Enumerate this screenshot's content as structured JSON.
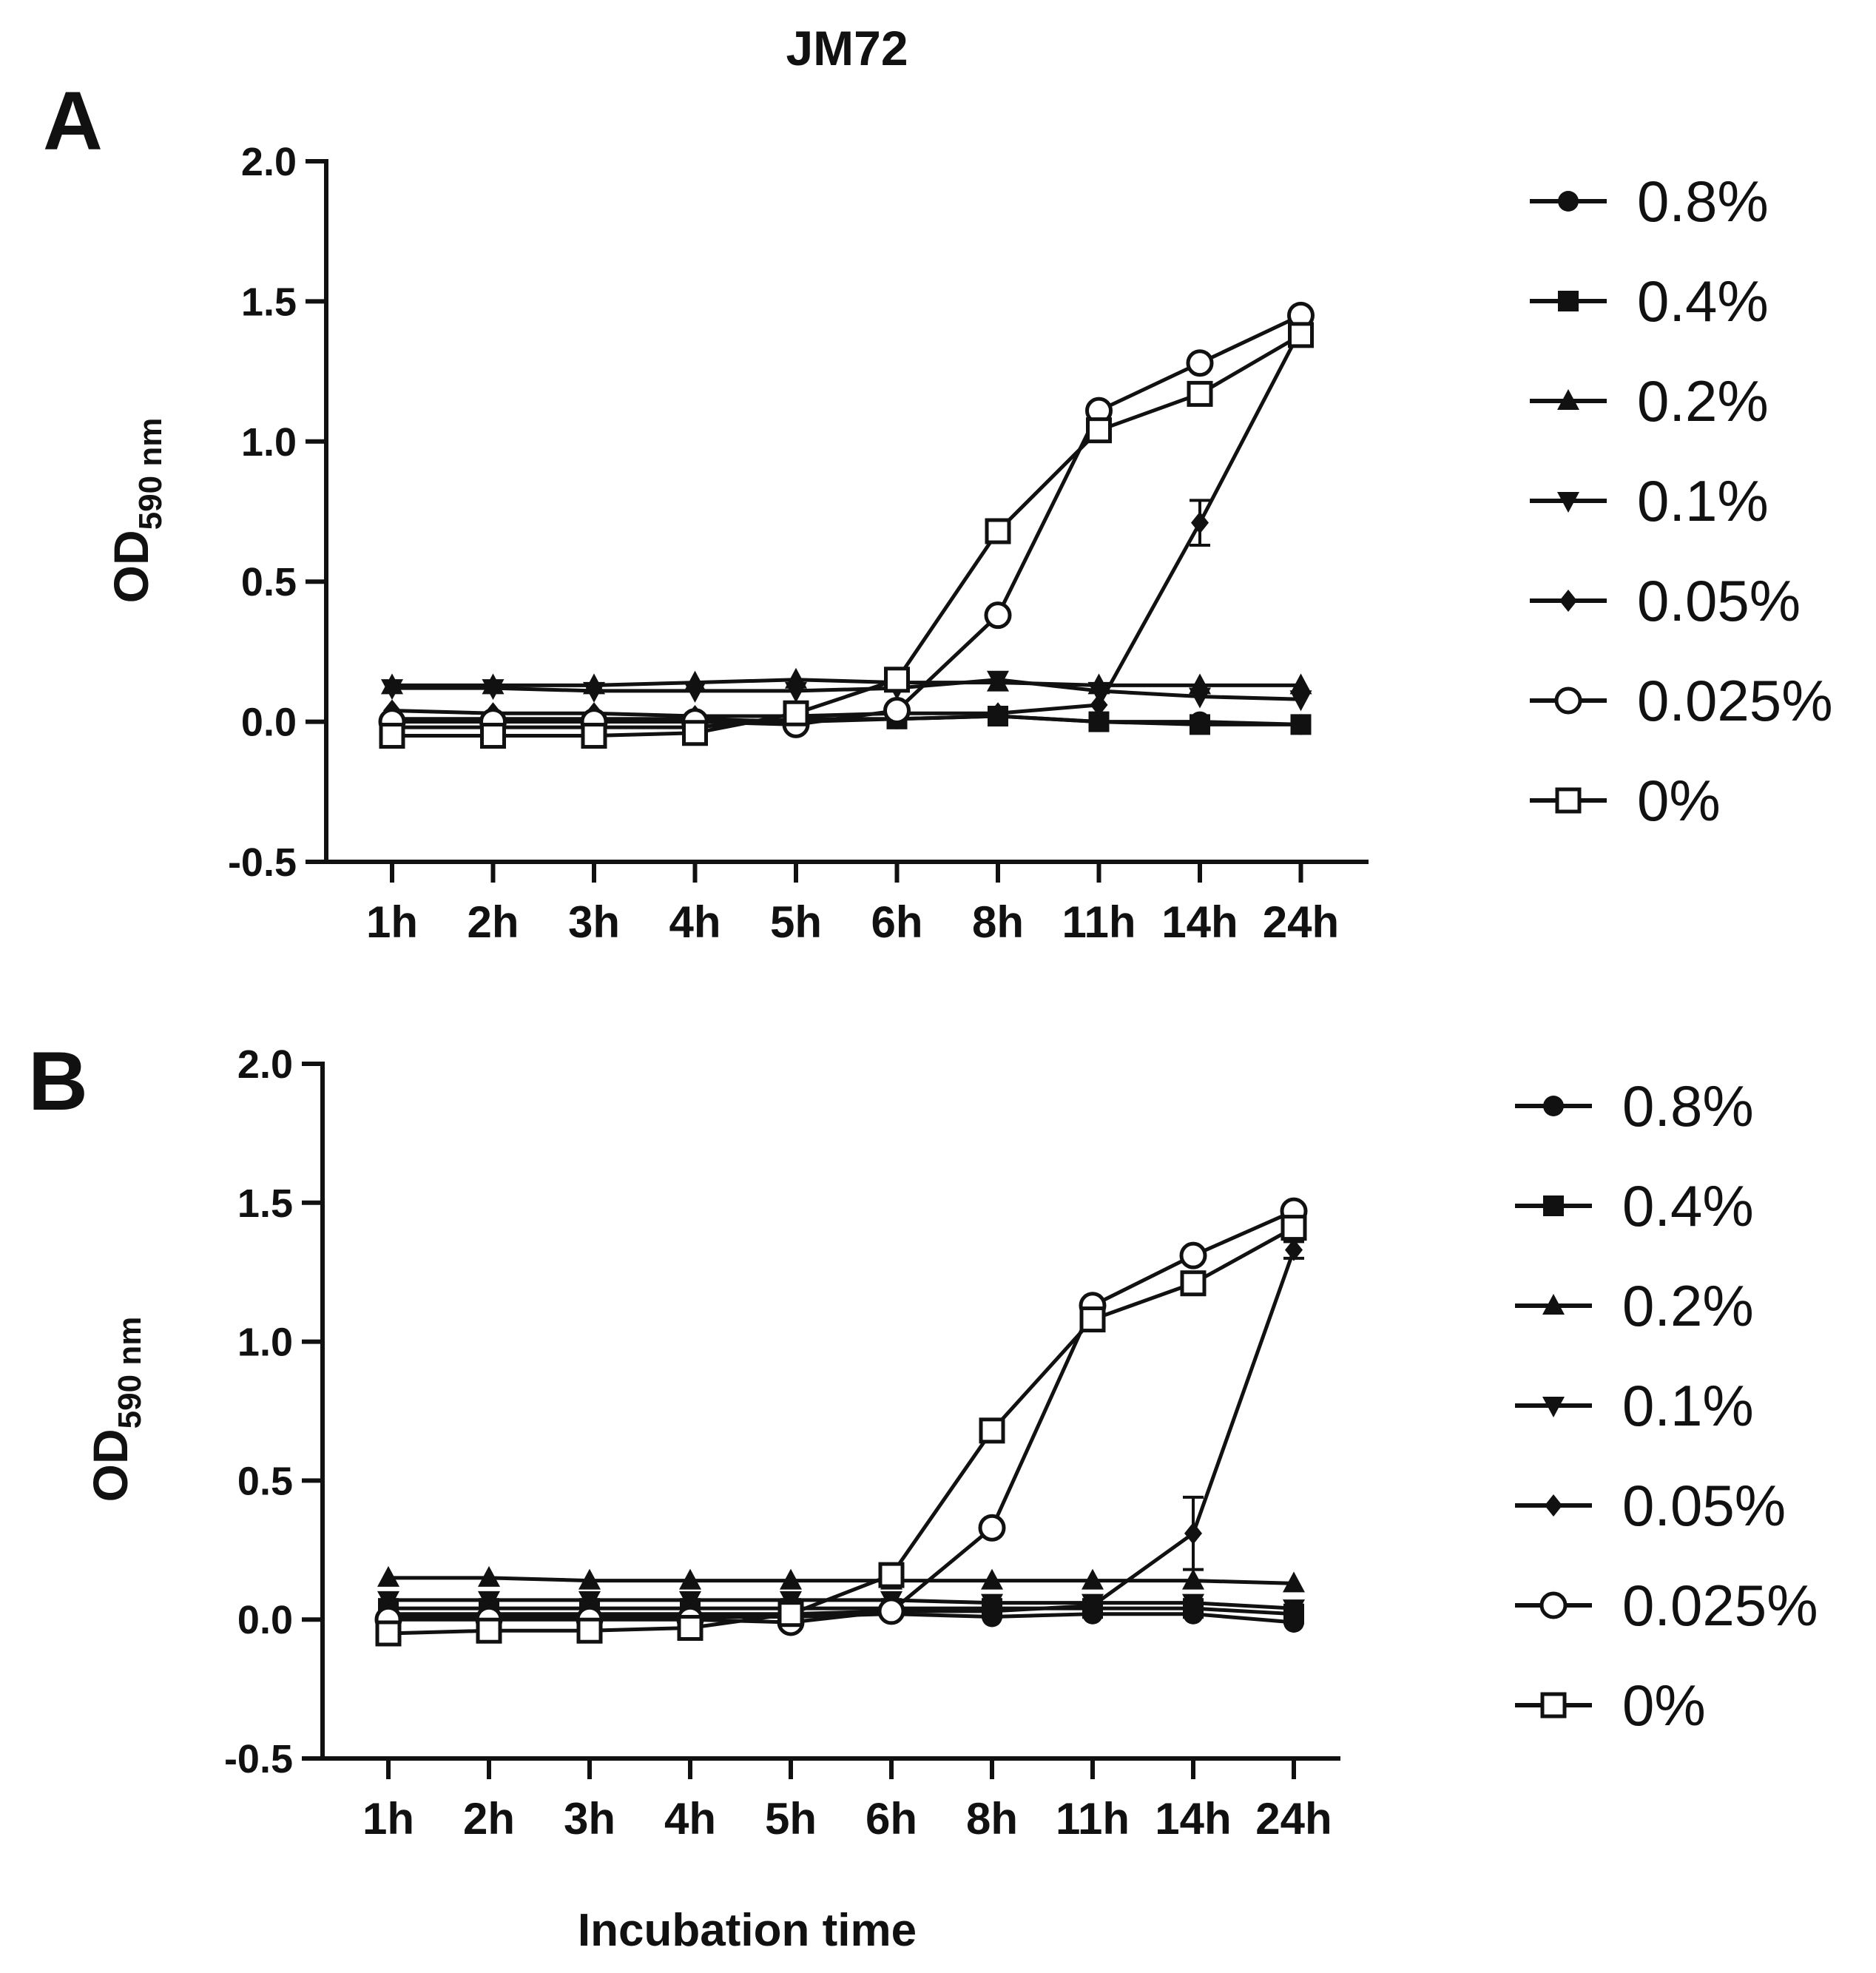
{
  "figure": {
    "title": "JM72",
    "xlabel": "Incubation time"
  },
  "chart_data": [
    {
      "panel": "A",
      "type": "line",
      "ylabel_main": "OD",
      "ylabel_sub": "590 nm",
      "xlabel": "Incubation time",
      "categories": [
        "1h",
        "2h",
        "3h",
        "4h",
        "5h",
        "6h",
        "8h",
        "11h",
        "14h",
        "24h"
      ],
      "ylim": [
        -0.5,
        2.0
      ],
      "yticks": [
        "2.0",
        "1.5",
        "1.0",
        "0.5",
        "0.0",
        "-0.5"
      ],
      "ytick_values": [
        2.0,
        1.5,
        1.0,
        0.5,
        0.0,
        -0.5
      ],
      "legend_position": "right",
      "series": [
        {
          "name": "0.8%",
          "marker": "circle-filled",
          "values": [
            0.01,
            0.01,
            0.01,
            0.01,
            0.0,
            0.01,
            0.02,
            0.0,
            0.0,
            -0.01
          ]
        },
        {
          "name": "0.4%",
          "marker": "square-filled",
          "values": [
            -0.02,
            -0.02,
            -0.02,
            -0.02,
            0.01,
            0.01,
            0.02,
            0.0,
            -0.01,
            -0.01
          ]
        },
        {
          "name": "0.2%",
          "marker": "triangle-up",
          "values": [
            0.13,
            0.13,
            0.13,
            0.14,
            0.15,
            0.14,
            0.14,
            0.13,
            0.13,
            0.13
          ]
        },
        {
          "name": "0.1%",
          "marker": "triangle-down",
          "values": [
            0.12,
            0.12,
            0.11,
            0.11,
            0.11,
            0.12,
            0.15,
            0.11,
            0.09,
            0.08
          ]
        },
        {
          "name": "0.05%",
          "marker": "diamond",
          "values": [
            0.04,
            0.03,
            0.03,
            0.02,
            0.02,
            0.03,
            0.03,
            0.06,
            0.71,
            1.4
          ]
        },
        {
          "name": "0.025%",
          "marker": "circle-open",
          "values": [
            0.0,
            0.0,
            0.0,
            0.0,
            -0.01,
            0.04,
            0.38,
            1.11,
            1.28,
            1.45
          ]
        },
        {
          "name": "0%",
          "marker": "square-open",
          "values": [
            -0.05,
            -0.05,
            -0.05,
            -0.04,
            0.03,
            0.15,
            0.68,
            1.04,
            1.17,
            1.38
          ]
        }
      ],
      "error_bars": [
        {
          "series": "0.05%",
          "category": "14h",
          "low": 0.63,
          "high": 0.79
        }
      ]
    },
    {
      "panel": "B",
      "type": "line",
      "ylabel_main": "OD",
      "ylabel_sub": "590 nm",
      "xlabel": "Incubation time",
      "categories": [
        "1h",
        "2h",
        "3h",
        "4h",
        "5h",
        "6h",
        "8h",
        "11h",
        "14h",
        "24h"
      ],
      "ylim": [
        -0.5,
        2.0
      ],
      "yticks": [
        "2.0",
        "1.5",
        "1.0",
        "0.5",
        "0.0",
        "-0.5"
      ],
      "ytick_values": [
        2.0,
        1.5,
        1.0,
        0.5,
        0.0,
        -0.5
      ],
      "legend_position": "right",
      "series": [
        {
          "name": "0.8%",
          "marker": "circle-filled",
          "values": [
            0.01,
            0.01,
            0.01,
            0.01,
            0.01,
            0.02,
            0.01,
            0.02,
            0.02,
            -0.01
          ]
        },
        {
          "name": "0.4%",
          "marker": "square-filled",
          "values": [
            0.04,
            0.04,
            0.04,
            0.04,
            0.04,
            0.04,
            0.04,
            0.04,
            0.04,
            0.02
          ]
        },
        {
          "name": "0.2%",
          "marker": "triangle-up",
          "values": [
            0.15,
            0.15,
            0.14,
            0.14,
            0.14,
            0.14,
            0.14,
            0.14,
            0.14,
            0.13
          ]
        },
        {
          "name": "0.1%",
          "marker": "triangle-down",
          "values": [
            0.07,
            0.07,
            0.07,
            0.07,
            0.07,
            0.07,
            0.06,
            0.06,
            0.06,
            0.04
          ]
        },
        {
          "name": "0.05%",
          "marker": "diamond",
          "values": [
            0.02,
            0.02,
            0.02,
            0.02,
            0.02,
            0.03,
            0.03,
            0.05,
            0.31,
            1.33
          ]
        },
        {
          "name": "0.025%",
          "marker": "circle-open",
          "values": [
            0.0,
            0.0,
            0.0,
            0.0,
            -0.01,
            0.03,
            0.33,
            1.13,
            1.31,
            1.47
          ]
        },
        {
          "name": "0%",
          "marker": "square-open",
          "values": [
            -0.05,
            -0.04,
            -0.04,
            -0.03,
            0.02,
            0.16,
            0.68,
            1.08,
            1.21,
            1.41
          ]
        }
      ],
      "error_bars": [
        {
          "series": "0.05%",
          "category": "14h",
          "low": 0.18,
          "high": 0.44
        },
        {
          "series": "0.05%",
          "category": "24h",
          "low": 1.3,
          "high": 1.36
        }
      ]
    }
  ]
}
